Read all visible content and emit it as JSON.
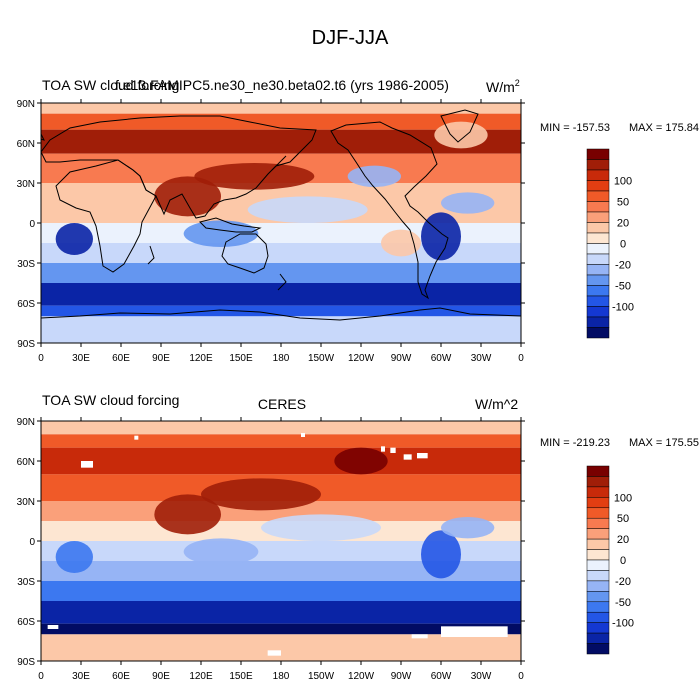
{
  "figure_title": "DJF-JJA",
  "chart_data": [
    {
      "type": "heatmap",
      "kind": "global-map",
      "left_title": "TOA SW cloud forcing",
      "center_title": "f.e13.FAMIPC5.ne30_ne30.beta02.t6 (yrs 1986-2005)",
      "units": "W/m",
      "units_sup": "2",
      "min_label": "MIN = -157.53",
      "max_label": "MAX = 175.84",
      "lat_ticks": [
        "90N",
        "60N",
        "30N",
        "0",
        "30S",
        "60S",
        "90S"
      ],
      "lon_ticks": [
        "0",
        "30E",
        "60E",
        "90E",
        "120E",
        "150E",
        "180",
        "150W",
        "120W",
        "90W",
        "60W",
        "30W",
        "0"
      ],
      "bands": [
        {
          "lat": [
            90,
            82
          ],
          "v": 15
        },
        {
          "lat": [
            82,
            70
          ],
          "v": 60
        },
        {
          "lat": [
            70,
            52
          ],
          "v": 105
        },
        {
          "lat": [
            52,
            30
          ],
          "v": 45
        },
        {
          "lat": [
            30,
            15
          ],
          "v": 15
        },
        {
          "lat": [
            15,
            0
          ],
          "v": 10
        },
        {
          "lat": [
            0,
            -15
          ],
          "v": -8
        },
        {
          "lat": [
            -15,
            -30
          ],
          "v": -15
        },
        {
          "lat": [
            -30,
            -45
          ],
          "v": -45
        },
        {
          "lat": [
            -45,
            -62
          ],
          "v": -105
        },
        {
          "lat": [
            -62,
            -70
          ],
          "v": -70
        },
        {
          "lat": [
            -70,
            -90
          ],
          "v": -15
        }
      ],
      "features": [
        {
          "lon": 25,
          "lat": -12,
          "rx": 14,
          "ry": 12,
          "v": -110
        },
        {
          "lon": 110,
          "lat": 20,
          "rx": 25,
          "ry": 15,
          "v": 105
        },
        {
          "lon": 135,
          "lat": -8,
          "rx": 28,
          "ry": 10,
          "v": -45
        },
        {
          "lon": 160,
          "lat": 35,
          "rx": 45,
          "ry": 10,
          "v": 115
        },
        {
          "lon": 200,
          "lat": 10,
          "rx": 45,
          "ry": 10,
          "v": -15
        },
        {
          "lon": 250,
          "lat": 35,
          "rx": 20,
          "ry": 8,
          "v": -35
        },
        {
          "lon": 300,
          "lat": -10,
          "rx": 15,
          "ry": 18,
          "v": -110
        },
        {
          "lon": 270,
          "lat": -15,
          "rx": 15,
          "ry": 10,
          "v": 10
        },
        {
          "lon": 320,
          "lat": 15,
          "rx": 20,
          "ry": 8,
          "v": -25
        },
        {
          "lon": 315,
          "lat": 66,
          "rx": 20,
          "ry": 10,
          "v": 10
        }
      ],
      "missing": []
    },
    {
      "type": "heatmap",
      "kind": "global-map",
      "left_title": "TOA SW cloud forcing",
      "center_title": "CERES",
      "units": "W/m^2",
      "units_sup": "",
      "min_label": "MIN = -219.23",
      "max_label": "MAX = 175.55",
      "lat_ticks": [
        "90N",
        "60N",
        "30N",
        "0",
        "30S",
        "60S",
        "90S"
      ],
      "lon_ticks": [
        "0",
        "30E",
        "60E",
        "90E",
        "120E",
        "150E",
        "180",
        "150W",
        "120W",
        "90W",
        "60W",
        "30W",
        "0"
      ],
      "bands": [
        {
          "lat": [
            90,
            80
          ],
          "v": 15
        },
        {
          "lat": [
            80,
            70
          ],
          "v": 55
        },
        {
          "lat": [
            70,
            50
          ],
          "v": 95
        },
        {
          "lat": [
            50,
            30
          ],
          "v": 55
        },
        {
          "lat": [
            30,
            15
          ],
          "v": 25
        },
        {
          "lat": [
            15,
            0
          ],
          "v": 5
        },
        {
          "lat": [
            0,
            -15
          ],
          "v": -15
        },
        {
          "lat": [
            -15,
            -30
          ],
          "v": -25
        },
        {
          "lat": [
            -30,
            -45
          ],
          "v": -55
        },
        {
          "lat": [
            -45,
            -62
          ],
          "v": -115
        },
        {
          "lat": [
            -62,
            -70
          ],
          "v": -140
        },
        {
          "lat": [
            -70,
            -90
          ],
          "v": 10
        }
      ],
      "features": [
        {
          "lon": 25,
          "lat": -12,
          "rx": 14,
          "ry": 12,
          "v": -60
        },
        {
          "lon": 110,
          "lat": 20,
          "rx": 25,
          "ry": 15,
          "v": 110
        },
        {
          "lon": 135,
          "lat": -8,
          "rx": 28,
          "ry": 10,
          "v": -30
        },
        {
          "lon": 165,
          "lat": 35,
          "rx": 45,
          "ry": 12,
          "v": 100
        },
        {
          "lon": 210,
          "lat": 10,
          "rx": 45,
          "ry": 10,
          "v": -20
        },
        {
          "lon": 300,
          "lat": -10,
          "rx": 15,
          "ry": 18,
          "v": -80
        },
        {
          "lon": 320,
          "lat": 10,
          "rx": 20,
          "ry": 8,
          "v": -30
        },
        {
          "lon": 240,
          "lat": 60,
          "rx": 20,
          "ry": 10,
          "v": 120
        }
      ],
      "missing": [
        {
          "lon": [
            30,
            39
          ],
          "lat": [
            60,
            55
          ]
        },
        {
          "lon": [
            70,
            73
          ],
          "lat": [
            79,
            76
          ]
        },
        {
          "lon": [
            195,
            198
          ],
          "lat": [
            81,
            78
          ]
        },
        {
          "lon": [
            255,
            258
          ],
          "lat": [
            71,
            67
          ]
        },
        {
          "lon": [
            262,
            266
          ],
          "lat": [
            70,
            66
          ]
        },
        {
          "lon": [
            272,
            278
          ],
          "lat": [
            65,
            61
          ]
        },
        {
          "lon": [
            282,
            290
          ],
          "lat": [
            66,
            62
          ]
        },
        {
          "lon": [
            5,
            13
          ],
          "lat": [
            -63,
            -66
          ]
        },
        {
          "lon": [
            300,
            350
          ],
          "lat": [
            -64,
            -72
          ]
        },
        {
          "lon": [
            278,
            290
          ],
          "lat": [
            -70,
            -73
          ]
        },
        {
          "lon": [
            170,
            180
          ],
          "lat": [
            -82,
            -86
          ]
        }
      ]
    }
  ],
  "colorbar": {
    "labels": [
      "100",
      "50",
      "20",
      "0",
      "-20",
      "-50",
      "-100"
    ],
    "levels": [
      -120,
      -100,
      -80,
      -65,
      -50,
      -35,
      -20,
      -10,
      0,
      10,
      20,
      35,
      50,
      65,
      80,
      100,
      120
    ],
    "colors": [
      "#020c64",
      "#0a24a6",
      "#1438d2",
      "#2356e6",
      "#3c78f0",
      "#6496f0",
      "#96b4f5",
      "#c8d8fa",
      "#ebf2fd",
      "#fde6d2",
      "#fcc8a8",
      "#faa07a",
      "#f87a50",
      "#f05a28",
      "#e23e12",
      "#c82a0a",
      "#a01e08",
      "#780000"
    ]
  }
}
